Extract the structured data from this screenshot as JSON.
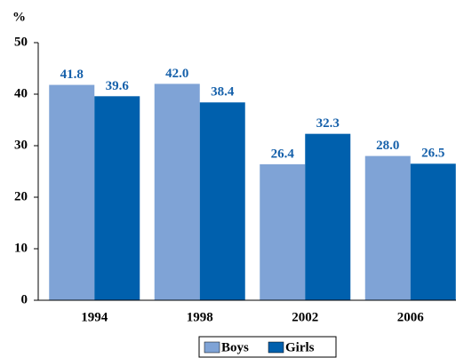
{
  "chart_data": {
    "type": "bar",
    "y_label": "%",
    "categories": [
      "1994",
      "1998",
      "2002",
      "2006"
    ],
    "series": [
      {
        "name": "Boys",
        "color": "#7fa3d6",
        "values": [
          41.8,
          42.0,
          26.4,
          28.0
        ],
        "value_labels": [
          "41.8",
          "42.0",
          "26.4",
          "28.0"
        ]
      },
      {
        "name": "Girls",
        "color": "#0060ad",
        "values": [
          39.6,
          38.4,
          32.3,
          26.5
        ],
        "value_labels": [
          "39.6",
          "38.4",
          "32.3",
          "26.5"
        ]
      }
    ],
    "ylim": [
      0,
      50
    ],
    "yticks": [
      0,
      10,
      20,
      30,
      40,
      50
    ],
    "legend": "bottom"
  }
}
